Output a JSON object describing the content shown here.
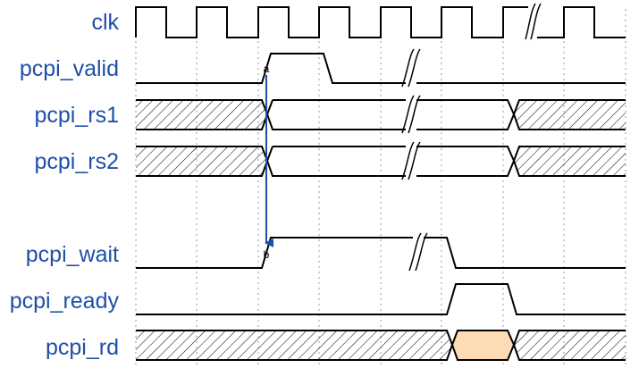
{
  "signals": [
    {
      "name": "clk"
    },
    {
      "name": "pcpi_valid"
    },
    {
      "name": "pcpi_rs1"
    },
    {
      "name": "pcpi_rs2"
    },
    {
      "name": "pcpi_wait"
    },
    {
      "name": "pcpi_ready"
    },
    {
      "name": "pcpi_rd"
    }
  ],
  "markers": {
    "start": "a",
    "end": "b"
  },
  "colors": {
    "label": "#1f4fa8",
    "arrow": "#1f4fa8",
    "result_fill": "#fddcb5",
    "hatch": "#000000",
    "grid": "#9a9a9a"
  }
}
